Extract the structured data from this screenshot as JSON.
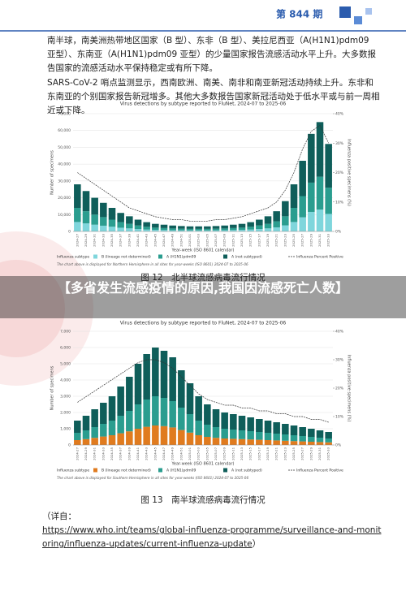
{
  "header": {
    "issue": "第 844 期"
  },
  "paragraphs": [
    "南半球，南美洲热带地区国家（B 型）、东非（B 型）、美拉尼西亚（A(H1N1)pdm09 亚型）、东南亚（A(H1N1)pdm09 亚型）的少量国家报告流感活动水平上升。大多数报告国家的流感活动水平保持稳定或有所下降。",
    "SARS-CoV-2 哨点监测显示，西南欧洲、南美、南非和南亚新冠活动持续上升。东非和东南亚的个别国家报告新冠增多。其他大多数报告国家新冠活动处于低水平或与前一周相近或下降。"
  ],
  "banner": "【多省发生流感疫情的原因,我国因流感死亡人数】",
  "captions": [
    "图 12　北半球流感病毒流行情况",
    "图 13　南半球流感病毒流行情况"
  ],
  "source": {
    "prefix": "（详自：",
    "url": "https://www.who.int/teams/global-influenza-programme/surveillance-and-monitoring/influenza-updates/current-influenza-update",
    "suffix": "）"
  },
  "chart_data": [
    {
      "type": "bar",
      "stacked": true,
      "title": "Virus detections by subtype reported to FluNet, 2024-07 to 2025-06",
      "ylabel": "Number of specimens",
      "y2label": "Influenza positive specimens (%)",
      "xlabel": "Year-week (ISO 8601 calendar)",
      "legend_title": "Influenza subtype",
      "footnote": "The chart above is displayed for Northern Hemisphere in all sites for year-weeks (ISO 8601) 2024-07 to 2025-06",
      "categories": [
        "2024-27",
        "2024-29",
        "2024-31",
        "2024-33",
        "2024-35",
        "2024-37",
        "2024-39",
        "2024-41",
        "2024-43",
        "2024-45",
        "2024-47",
        "2024-49",
        "2024-51",
        "2025-01",
        "2025-03",
        "2025-05",
        "2025-07",
        "2025-09",
        "2025-11",
        "2025-13",
        "2025-15",
        "2025-17",
        "2025-19",
        "2025-21",
        "2025-23",
        "2025-25",
        "2025-27",
        "2025-29",
        "2025-31",
        "2025-33"
      ],
      "series": [
        {
          "name": "B (lineage not determined)",
          "color": "#7fd6dc",
          "values": [
            5600,
            4800,
            4000,
            3400,
            2800,
            2200,
            1800,
            1400,
            1100,
            900,
            800,
            700,
            640,
            600,
            600,
            600,
            640,
            700,
            800,
            900,
            1100,
            1400,
            1800,
            2400,
            3600,
            5600,
            8400,
            11600,
            13000,
            10400
          ]
        },
        {
          "name": "A (H1N1)pdm09",
          "color": "#2a9d8f",
          "values": [
            8400,
            7200,
            6000,
            5100,
            4200,
            3300,
            2700,
            2100,
            1650,
            1350,
            1200,
            1050,
            960,
            900,
            900,
            900,
            960,
            1050,
            1200,
            1350,
            1650,
            2100,
            2700,
            3600,
            5400,
            8400,
            12600,
            17400,
            19500,
            15600
          ]
        },
        {
          "name": "A (not subtyped)",
          "color": "#0f5e5a",
          "values": [
            14000,
            12000,
            10000,
            8500,
            7000,
            5500,
            4500,
            3500,
            2750,
            2250,
            2000,
            1750,
            1600,
            1500,
            1500,
            1500,
            1600,
            1750,
            2000,
            2250,
            2750,
            3500,
            4500,
            6000,
            9000,
            14000,
            21000,
            29000,
            32500,
            26000
          ]
        },
        {
          "name": "Influenza Percent Positive",
          "type": "line",
          "axis": "y2",
          "color": "#333333",
          "values": [
            20,
            18,
            16,
            14,
            12,
            10,
            8,
            7,
            6,
            5,
            4.5,
            4,
            4,
            3.5,
            3.5,
            3.5,
            4,
            4,
            4.5,
            5,
            6,
            7,
            8,
            10,
            14,
            20,
            28,
            34,
            36,
            30
          ]
        }
      ],
      "ylim": [
        0,
        70000
      ],
      "yticks": [
        0,
        {
          "value": 10000,
          "label": "10,000"
        },
        {
          "value": 20000,
          "label": "20,000"
        },
        {
          "value": 30000,
          "label": "30,000"
        },
        {
          "value": 40000,
          "label": "40,000"
        },
        {
          "value": 50000,
          "label": "50,000"
        },
        {
          "value": 60000,
          "label": "60,000"
        },
        {
          "value": 70000,
          "label": "70,000"
        }
      ],
      "y2lim": [
        0,
        40
      ],
      "y2ticks": [
        {
          "value": 0,
          "label": "0%"
        },
        {
          "value": 10,
          "label": "10%"
        },
        {
          "value": 20,
          "label": "20%"
        },
        {
          "value": 30,
          "label": "30%"
        },
        {
          "value": 40,
          "label": "40%"
        }
      ],
      "grid": true
    },
    {
      "type": "bar",
      "stacked": true,
      "title": "Virus detections by subtype reported to FluNet, 2024-07 to 2025-06",
      "ylabel": "Number of specimens",
      "y2label": "Influenza positive specimens (%)",
      "xlabel": "Year-week (ISO 8601 calendar)",
      "legend_title": "Influenza subtype",
      "footnote": "The chart above is displayed for Southern Hemisphere in all sites for year-weeks (ISO 8601) 2024-07 to 2025-06",
      "categories": [
        "2024-27",
        "2024-29",
        "2024-31",
        "2024-33",
        "2024-35",
        "2024-37",
        "2024-39",
        "2024-41",
        "2024-43",
        "2024-45",
        "2024-47",
        "2024-49",
        "2024-51",
        "2025-01",
        "2025-03",
        "2025-05",
        "2025-07",
        "2025-09",
        "2025-11",
        "2025-13",
        "2025-15",
        "2025-17",
        "2025-19",
        "2025-21",
        "2025-23",
        "2025-25",
        "2025-27",
        "2025-29",
        "2025-31",
        "2025-33"
      ],
      "series": [
        {
          "name": "B (lineage not determined)",
          "color": "#e07b1f",
          "values": [
            300,
            360,
            440,
            520,
            600,
            720,
            840,
            1000,
            1120,
            1200,
            1160,
            1080,
            920,
            760,
            600,
            500,
            440,
            400,
            380,
            360,
            340,
            320,
            300,
            280,
            260,
            240,
            220,
            200,
            180,
            160
          ]
        },
        {
          "name": "A (H1N1)pdm09",
          "color": "#2a9d8f",
          "values": [
            450,
            540,
            660,
            780,
            900,
            1080,
            1260,
            1500,
            1680,
            1800,
            1740,
            1620,
            1380,
            1140,
            900,
            750,
            660,
            600,
            570,
            540,
            510,
            480,
            450,
            420,
            390,
            360,
            330,
            300,
            270,
            240
          ]
        },
        {
          "name": "A (not subtyped)",
          "color": "#0f5e5a",
          "values": [
            750,
            900,
            1100,
            1300,
            1500,
            1800,
            2100,
            2500,
            2800,
            3000,
            2900,
            2700,
            2300,
            1900,
            1500,
            1250,
            1100,
            1000,
            950,
            900,
            850,
            800,
            750,
            700,
            650,
            600,
            550,
            500,
            450,
            400
          ]
        },
        {
          "name": "Influenza Percent Positive",
          "type": "line",
          "axis": "y2",
          "color": "#333333",
          "values": [
            15,
            17,
            19,
            21,
            23,
            25,
            27,
            29,
            30,
            30,
            29,
            27,
            24,
            21,
            18,
            16,
            15,
            14,
            14,
            13,
            13,
            12,
            12,
            11,
            11,
            10,
            10,
            9,
            9,
            8
          ]
        }
      ],
      "ylim": [
        0,
        7000
      ],
      "yticks": [
        0,
        {
          "value": 1000,
          "label": "1,000"
        },
        {
          "value": 2000,
          "label": "2,000"
        },
        {
          "value": 3000,
          "label": "3,000"
        },
        {
          "value": 4000,
          "label": "4,000"
        },
        {
          "value": 5000,
          "label": "5,000"
        },
        {
          "value": 6000,
          "label": "6,000"
        },
        {
          "value": 7000,
          "label": "7,000"
        }
      ],
      "y2lim": [
        0,
        40
      ],
      "y2ticks": [
        {
          "value": 0,
          "label": "0%"
        },
        {
          "value": 10,
          "label": "10%"
        },
        {
          "value": 20,
          "label": "20%"
        },
        {
          "value": 30,
          "label": "30%"
        },
        {
          "value": 40,
          "label": "40%"
        }
      ],
      "grid": true
    }
  ]
}
